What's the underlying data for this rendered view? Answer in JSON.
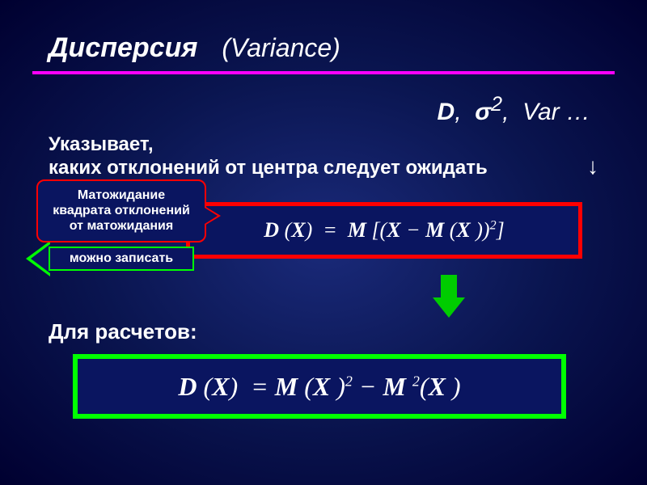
{
  "title": {
    "main": "Дисперсия",
    "sub": "(Variance)",
    "underline_color": "#ff00ff"
  },
  "notation": {
    "D": "D",
    "sigma": "σ",
    "squared": "2",
    "var": "Var",
    "ellipsis": "…"
  },
  "description": {
    "line1": "Указывает,",
    "line2": "каких отклонений от центра следует ожидать",
    "arrow": "↓"
  },
  "callout": {
    "line1": "Матожидание",
    "line2": "квадрата отклонений",
    "line3": "от матожидания",
    "border_color": "#ff0000",
    "bg_color": "#0a1560"
  },
  "arrow_left": {
    "text": "можно записать",
    "border_color": "#00ff00"
  },
  "formula_def": {
    "text_parts": {
      "D": "D",
      "X": "X",
      "M": "M",
      "eq": "=",
      "minus": "−",
      "sq": "2"
    },
    "border_color": "#ff0000",
    "bg_color": "#0a1560"
  },
  "calc_label": "Для расчетов:",
  "formula_calc": {
    "border_color": "#00ff00",
    "bg_color": "#0a1560"
  },
  "arrow_down": {
    "color": "#00cc00"
  },
  "colors": {
    "text": "#ffffff",
    "bg_gradient_center": "#1a2a7a",
    "bg_gradient_mid": "#0a1550",
    "bg_gradient_edge": "#000030"
  }
}
